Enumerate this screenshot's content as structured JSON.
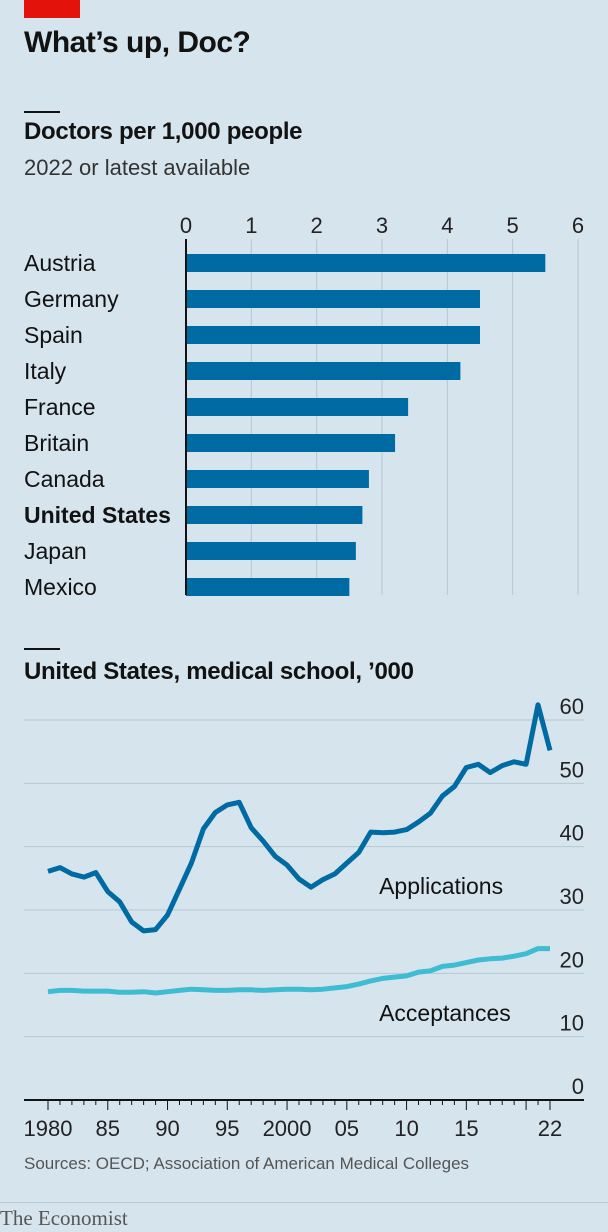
{
  "header": {
    "title": "What’s up, Doc?"
  },
  "chart1": {
    "title": "Doctors per 1,000 people",
    "subtitle": "2022 or latest available"
  },
  "chart2": {
    "title": "United States, medical school, ’000"
  },
  "footer": {
    "source": "Sources: OECD; Association of American Medical Colleges",
    "brand": "The Economist"
  },
  "colors": {
    "background": "#d6e4ed",
    "bar": "#006ba2",
    "applications": "#006ba2",
    "acceptances": "#3ebcd2",
    "grid": "#b4c8d4",
    "accent_red": "#e3120b"
  },
  "chart_data": [
    {
      "type": "bar",
      "orientation": "horizontal",
      "title": "Doctors per 1,000 people",
      "subtitle": "2022 or latest available",
      "categories": [
        "Austria",
        "Germany",
        "Spain",
        "Italy",
        "France",
        "Britain",
        "Canada",
        "United States",
        "Japan",
        "Mexico"
      ],
      "highlight": "United States",
      "values": [
        5.5,
        4.5,
        4.5,
        4.2,
        3.4,
        3.2,
        2.8,
        2.7,
        2.6,
        2.5
      ],
      "xlim": [
        0,
        6
      ],
      "xticks": [
        0,
        1,
        2,
        3,
        4,
        5,
        6
      ],
      "grid": true,
      "axis_position": "top"
    },
    {
      "type": "line",
      "title": "United States, medical school, ’000",
      "x": [
        1980,
        1981,
        1982,
        1983,
        1984,
        1985,
        1986,
        1987,
        1988,
        1989,
        1990,
        1991,
        1992,
        1993,
        1994,
        1995,
        1996,
        1997,
        1998,
        1999,
        2000,
        2001,
        2002,
        2003,
        2004,
        2005,
        2006,
        2007,
        2008,
        2009,
        2010,
        2011,
        2012,
        2013,
        2014,
        2015,
        2016,
        2017,
        2018,
        2019,
        2020,
        2021,
        2022
      ],
      "series": [
        {
          "name": "Applications",
          "values": [
            36.1,
            36.7,
            35.7,
            35.2,
            35.9,
            32.9,
            31.3,
            28.1,
            26.7,
            26.9,
            29.2,
            33.3,
            37.4,
            42.8,
            45.4,
            46.6,
            47.0,
            43.0,
            40.9,
            38.5,
            37.1,
            34.9,
            33.6,
            34.8,
            35.7,
            37.4,
            39.1,
            42.3,
            42.2,
            42.3,
            42.7,
            43.9,
            45.3,
            48.0,
            49.5,
            52.5,
            53.0,
            51.7,
            52.8,
            53.4,
            53.0,
            62.4,
            55.2
          ]
        },
        {
          "name": "Acceptances",
          "values": [
            17.1,
            17.3,
            17.3,
            17.2,
            17.2,
            17.2,
            17.0,
            17.0,
            17.1,
            16.9,
            17.1,
            17.3,
            17.5,
            17.4,
            17.3,
            17.3,
            17.4,
            17.4,
            17.3,
            17.4,
            17.5,
            17.5,
            17.4,
            17.5,
            17.7,
            17.9,
            18.3,
            18.8,
            19.2,
            19.4,
            19.6,
            20.2,
            20.4,
            21.1,
            21.3,
            21.7,
            22.1,
            22.3,
            22.4,
            22.7,
            23.1,
            23.9,
            23.9
          ]
        }
      ],
      "ylim": [
        0,
        60
      ],
      "yticks": [
        0,
        10,
        20,
        30,
        40,
        50,
        60
      ],
      "xtick_labels": [
        {
          "value": 1980,
          "label": "1980"
        },
        {
          "value": 1985,
          "label": "85"
        },
        {
          "value": 1990,
          "label": "90"
        },
        {
          "value": 1995,
          "label": "95"
        },
        {
          "value": 2000,
          "label": "2000"
        },
        {
          "value": 2005,
          "label": "05"
        },
        {
          "value": 2010,
          "label": "10"
        },
        {
          "value": 2015,
          "label": "15"
        },
        {
          "value": 2022,
          "label": "22"
        }
      ],
      "annotations": [
        "Applications",
        "Acceptances"
      ],
      "grid": true,
      "y_axis_position": "right"
    }
  ]
}
